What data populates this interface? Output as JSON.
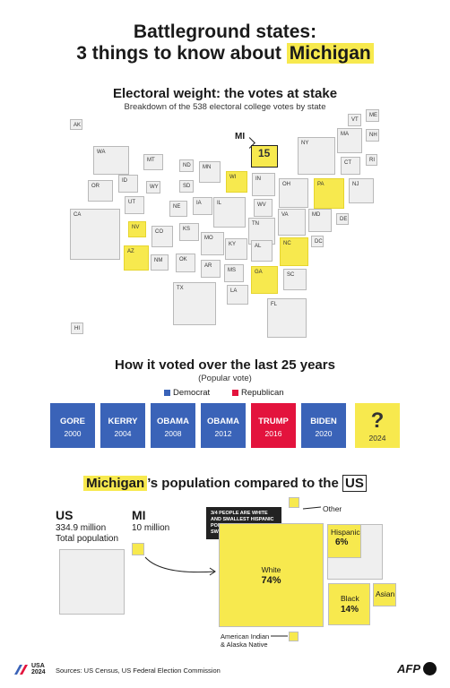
{
  "header": {
    "title_line1": "Battleground states:",
    "title_line2_prefix": "3 things to know about ",
    "title_line2_highlight": "Michigan"
  },
  "map": {
    "title": "Electoral weight: the votes at stake",
    "subtitle": "Breakdown of the 538 electoral college votes by state",
    "mi_label": "MI",
    "mi_votes": "15",
    "states": [
      "AK",
      "WA",
      "MT",
      "ND",
      "MN",
      "WI",
      "MI",
      "NY",
      "VT",
      "ME",
      "NH",
      "MA",
      "RI",
      "CT",
      "OR",
      "ID",
      "WY",
      "SD",
      "IN",
      "OH",
      "PA",
      "NJ",
      "CA",
      "NV",
      "UT",
      "NE",
      "IA",
      "IL",
      "WV",
      "VA",
      "MD",
      "DE",
      "CO",
      "KS",
      "TN",
      "NC",
      "DC",
      "AZ",
      "NM",
      "OK",
      "MO",
      "KY",
      "AL",
      "GA",
      "SC",
      "AR",
      "MS",
      "TX",
      "LA",
      "FL",
      "HI"
    ],
    "swing_states": [
      "WI",
      "MI",
      "PA",
      "NV",
      "AZ",
      "NC",
      "GA"
    ],
    "highlight_color": "#f7e94e"
  },
  "votes": {
    "title": "How it voted over the last 25 years",
    "subtitle": "(Popular vote)",
    "legend_dem": "Democrat",
    "legend_rep": "Republican",
    "dem_color": "#3a63b8",
    "rep_color": "#e3133d",
    "elections": [
      {
        "name": "GORE",
        "year": "2000",
        "party": "dem"
      },
      {
        "name": "KERRY",
        "year": "2004",
        "party": "dem"
      },
      {
        "name": "OBAMA",
        "year": "2008",
        "party": "dem"
      },
      {
        "name": "OBAMA",
        "year": "2012",
        "party": "dem"
      },
      {
        "name": "TRUMP",
        "year": "2016",
        "party": "rep"
      },
      {
        "name": "BIDEN",
        "year": "2020",
        "party": "dem"
      },
      {
        "name": "?",
        "year": "2024",
        "party": "unknown"
      }
    ]
  },
  "population": {
    "title_highlight": "Michigan",
    "title_mid": "’s population compared to the ",
    "title_us": "US",
    "us_label": "US",
    "us_value": "334.9 million",
    "us_caption": "Total population",
    "mi_label": "MI",
    "mi_value": "10 million",
    "note": "3/4 PEOPLE ARE WHITE AND SMALLEST HISPANIC POPULATION OF ALL SWING STATES, IN %",
    "other_label": "Other",
    "white_label": "White",
    "white_pct": "74%",
    "hispanic_label": "Hispanic",
    "hispanic_pct": "6%",
    "black_label": "Black",
    "black_pct": "14%",
    "asian_label": "Asian",
    "native_label1": "American Indian",
    "native_label2": "& Alaska Native"
  },
  "footer": {
    "logo_line1": "USA",
    "logo_line2": "2024",
    "sources": "Sources: US Census, US Federal Election Commission",
    "agency": "AFP"
  }
}
